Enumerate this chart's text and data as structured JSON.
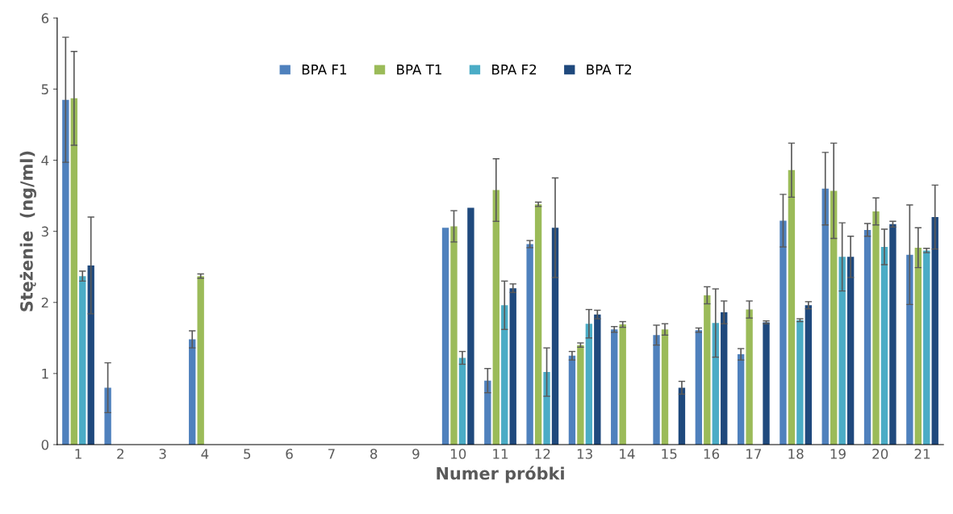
{
  "chart_data": {
    "type": "bar",
    "xlabel": "Numer próbki",
    "ylabel": "Stężenie  (ng/ml)",
    "categories": [
      "1",
      "2",
      "3",
      "4",
      "5",
      "6",
      "7",
      "8",
      "9",
      "10",
      "11",
      "12",
      "13",
      "14",
      "15",
      "16",
      "17",
      "18",
      "19",
      "20",
      "21"
    ],
    "ylim": [
      0,
      6
    ],
    "yticks": [
      0,
      1,
      2,
      3,
      4,
      5,
      6
    ],
    "grid": false,
    "legend": "top",
    "series": [
      {
        "name": "BPA F1",
        "color": "#4f81bd",
        "values": [
          4.85,
          0.8,
          null,
          1.48,
          null,
          null,
          null,
          null,
          null,
          3.05,
          0.9,
          2.82,
          1.25,
          1.62,
          1.54,
          1.61,
          1.27,
          3.15,
          3.6,
          3.02,
          2.67
        ],
        "errors": [
          0.88,
          0.35,
          null,
          0.12,
          null,
          null,
          null,
          null,
          null,
          null,
          0.17,
          0.05,
          0.06,
          0.04,
          0.14,
          0.03,
          0.08,
          0.37,
          0.51,
          0.09,
          0.7
        ]
      },
      {
        "name": "BPA T1",
        "color": "#9bbb59",
        "values": [
          4.87,
          null,
          null,
          2.37,
          null,
          null,
          null,
          null,
          null,
          3.07,
          3.58,
          3.38,
          1.4,
          1.69,
          1.62,
          2.1,
          1.9,
          3.86,
          3.57,
          3.28,
          2.77
        ],
        "errors": [
          0.66,
          null,
          null,
          0.03,
          null,
          null,
          null,
          null,
          null,
          0.22,
          0.44,
          0.03,
          0.03,
          0.04,
          0.08,
          0.12,
          0.12,
          0.38,
          0.67,
          0.19,
          0.28
        ]
      },
      {
        "name": "BPA F2",
        "color": "#4bacc6",
        "values": [
          2.37,
          null,
          null,
          null,
          null,
          null,
          null,
          null,
          null,
          1.22,
          1.96,
          1.02,
          1.7,
          null,
          null,
          1.71,
          null,
          1.75,
          2.64,
          2.78,
          2.73
        ],
        "errors": [
          0.07,
          null,
          null,
          null,
          null,
          null,
          null,
          null,
          null,
          0.09,
          0.34,
          0.34,
          0.2,
          null,
          null,
          0.48,
          null,
          0.02,
          0.48,
          0.25,
          0.03
        ]
      },
      {
        "name": "BPA T2",
        "color": "#1f497d",
        "values": [
          2.52,
          null,
          null,
          null,
          null,
          null,
          null,
          null,
          null,
          3.33,
          2.2,
          3.05,
          1.83,
          null,
          0.8,
          1.86,
          1.72,
          1.96,
          2.64,
          3.1,
          3.2
        ],
        "errors": [
          0.68,
          null,
          null,
          null,
          null,
          null,
          null,
          null,
          null,
          null,
          0.06,
          0.7,
          0.06,
          null,
          0.09,
          0.16,
          0.02,
          0.05,
          0.29,
          0.04,
          0.45
        ]
      }
    ]
  }
}
